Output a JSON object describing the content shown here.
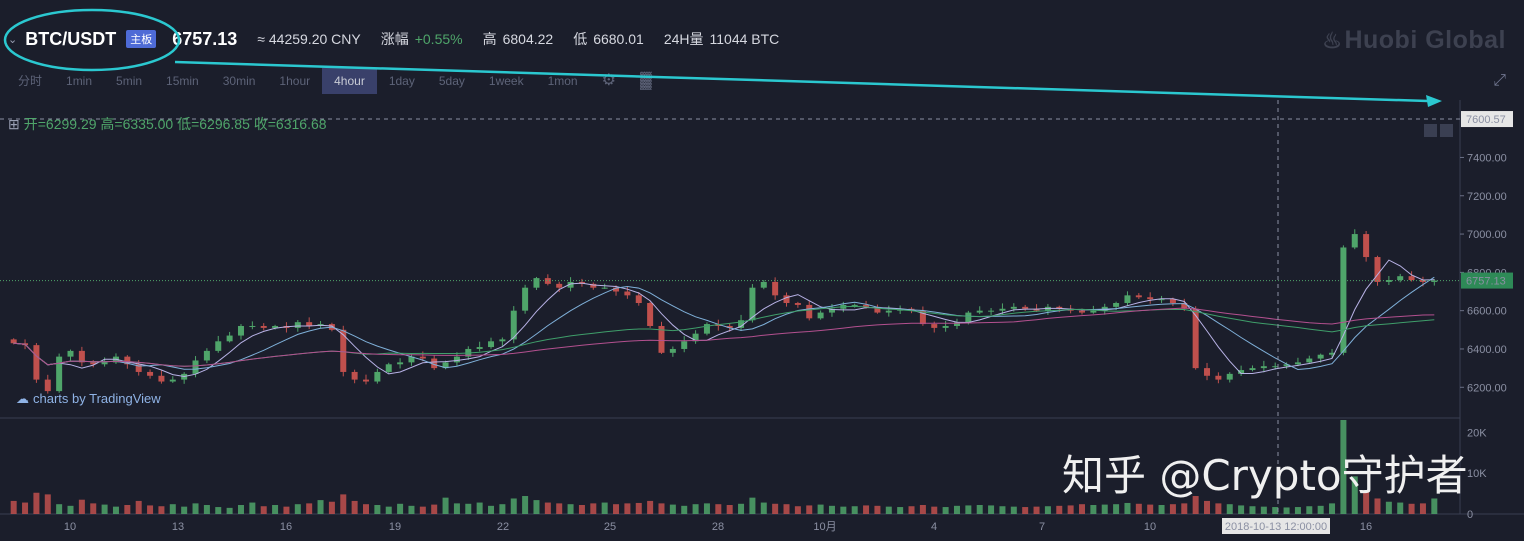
{
  "header": {
    "pair": "BTC/USDT",
    "board_badge": "主板",
    "last_price": "6757.13",
    "cny_approx": "≈ 44259.20 CNY",
    "change_label": "涨幅",
    "change_value": "+0.55%",
    "high_label": "高",
    "high_value": "6804.22",
    "low_label": "低",
    "low_value": "6680.01",
    "volume_label": "24H量",
    "volume_value": "11044 BTC",
    "logo": "Huobi Global"
  },
  "intervals": [
    "分时",
    "1min",
    "5min",
    "15min",
    "30min",
    "1hour",
    "4hour",
    "1day",
    "5day",
    "1week",
    "1mon"
  ],
  "active_interval": "4hour",
  "ohlc": {
    "text": "开=6299.29  高=6335.00  低=6296.85  收=6316.68"
  },
  "attribution": "charts by TradingView",
  "watermark": "知乎 @Crypto守护者",
  "colors": {
    "up": "#4fa56a",
    "down": "#c0504d",
    "accent_line": "#2bc8d0",
    "bg": "#1b1e2b"
  },
  "chart_data": {
    "type": "candlestick",
    "y_ticks": [
      "7400.00",
      "7200.00",
      "7000.00",
      "6800.00",
      "6600.00",
      "6400.00",
      "6200.00"
    ],
    "y_tick_values": [
      7400,
      7200,
      7000,
      6800,
      6600,
      6400,
      6200
    ],
    "ylim": [
      6050,
      7700
    ],
    "x_ticks": [
      "10",
      "13",
      "16",
      "19",
      "22",
      "25",
      "28",
      "10月",
      "4",
      "7",
      "10",
      "13",
      "16"
    ],
    "current_price_label": "6757.13",
    "current_price": 6757.13,
    "crosshair_price_label": "7600.57",
    "crosshair_price": 7600.57,
    "crosshair_time_label": "2018-10-13 12:00:00",
    "volume_ticks": [
      "20K",
      "10K",
      "0"
    ],
    "volume_tick_values": [
      20000,
      10000,
      0
    ],
    "volume_max": 23000,
    "close_series": [
      6430,
      6420,
      6240,
      6180,
      6360,
      6390,
      6330,
      6320,
      6330,
      6360,
      6320,
      6280,
      6260,
      6230,
      6240,
      6270,
      6340,
      6390,
      6440,
      6470,
      6520,
      6520,
      6510,
      6520,
      6510,
      6540,
      6520,
      6530,
      6500,
      6280,
      6240,
      6230,
      6280,
      6320,
      6330,
      6360,
      6350,
      6300,
      6330,
      6360,
      6400,
      6410,
      6440,
      6450,
      6600,
      6720,
      6770,
      6740,
      6720,
      6750,
      6740,
      6720,
      6720,
      6700,
      6680,
      6640,
      6520,
      6380,
      6400,
      6440,
      6480,
      6530,
      6520,
      6510,
      6550,
      6720,
      6750,
      6680,
      6640,
      6630,
      6560,
      6590,
      6610,
      6630,
      6630,
      6620,
      6590,
      6600,
      6610,
      6600,
      6530,
      6510,
      6520,
      6540,
      6590,
      6600,
      6600,
      6610,
      6620,
      6610,
      6600,
      6620,
      6610,
      6600,
      6590,
      6600,
      6620,
      6640,
      6680,
      6670,
      6660,
      6660,
      6640,
      6610,
      6300,
      6260,
      6240,
      6270,
      6290,
      6300,
      6310,
      6310,
      6320,
      6330,
      6350,
      6370,
      6380,
      6930,
      7000,
      6880,
      6750,
      6760,
      6780,
      6760,
      6750,
      6757
    ],
    "volumes": [
      3200,
      2800,
      5200,
      4800,
      2400,
      2000,
      3500,
      2600,
      2300,
      1800,
      2200,
      3200,
      2100,
      1900,
      2400,
      1800,
      2600,
      2200,
      1700,
      1500,
      2200,
      2800,
      1900,
      2200,
      1800,
      2400,
      2600,
      3400,
      3000,
      4800,
      3200,
      2400,
      2200,
      1800,
      2500,
      2000,
      1800,
      2300,
      4000,
      2600,
      2500,
      2800,
      2000,
      2400,
      3800,
      4400,
      3400,
      2800,
      2600,
      2400,
      2200,
      2600,
      2800,
      2400,
      2600,
      2700,
      3200,
      2600,
      2300,
      2000,
      2400,
      2600,
      2400,
      2200,
      2500,
      4000,
      2800,
      2500,
      2400,
      1900,
      2100,
      2300,
      2000,
      1800,
      1900,
      2100,
      2000,
      1800,
      1700,
      1900,
      2200,
      1800,
      1700,
      2000,
      2100,
      2200,
      2100,
      1900,
      1800,
      1700,
      1800,
      1900,
      2000,
      2100,
      2400,
      2200,
      2300,
      2400,
      2700,
      2500,
      2300,
      2200,
      2400,
      2600,
      4400,
      3200,
      2600,
      2400,
      2100,
      1900,
      1800,
      1700,
      1600,
      1700,
      1900,
      2000,
      2600,
      23000,
      9200,
      5600,
      3800,
      3000,
      2800,
      2500,
      2600,
      3800
    ]
  }
}
